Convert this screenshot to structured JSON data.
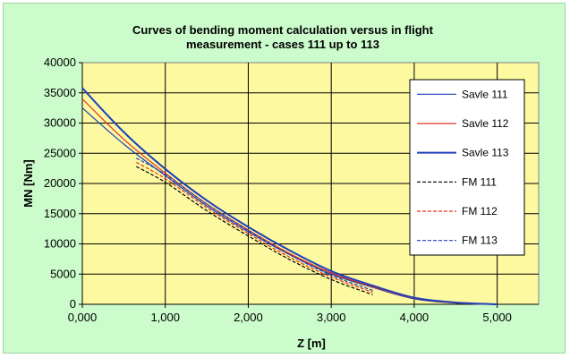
{
  "chart_data": {
    "type": "line",
    "title_lines": [
      "Curves of bending moment calculation versus in flight",
      "measurement - cases 111 up to 113"
    ],
    "xlabel": "Z [m]",
    "ylabel": "MN [Nm]",
    "xlim": [
      0,
      5.5
    ],
    "ylim": [
      0,
      40000
    ],
    "x_ticks": [
      {
        "value": 0,
        "label": "0,000"
      },
      {
        "value": 1,
        "label": "1,000"
      },
      {
        "value": 2,
        "label": "2,000"
      },
      {
        "value": 3,
        "label": "3,000"
      },
      {
        "value": 4,
        "label": "4,000"
      },
      {
        "value": 5,
        "label": "5,000"
      }
    ],
    "y_ticks": [
      {
        "value": 0,
        "label": "0"
      },
      {
        "value": 5000,
        "label": "5000"
      },
      {
        "value": 10000,
        "label": "10000"
      },
      {
        "value": 15000,
        "label": "15000"
      },
      {
        "value": 20000,
        "label": "20000"
      },
      {
        "value": 25000,
        "label": "25000"
      },
      {
        "value": 30000,
        "label": "30000"
      },
      {
        "value": 35000,
        "label": "35000"
      },
      {
        "value": 40000,
        "label": "40000"
      }
    ],
    "grid": true,
    "legend_position": "right",
    "plot_background": "#fcf9a0",
    "series": [
      {
        "name": "Savle 111",
        "color": "#1f3fb8",
        "dash": "solid",
        "width": 1.2,
        "x": [
          0,
          0.5,
          1.0,
          1.5,
          2.0,
          2.5,
          3.0,
          3.5,
          4.0,
          4.5,
          5.0
        ],
        "y": [
          32500,
          26500,
          21300,
          16300,
          12000,
          8200,
          5000,
          2800,
          900,
          200,
          0
        ]
      },
      {
        "name": "Savle 112",
        "color": "#e33020",
        "dash": "solid",
        "width": 1.2,
        "x": [
          0,
          0.5,
          1.0,
          1.5,
          2.0,
          2.5,
          3.0,
          3.5,
          4.0,
          4.5,
          5.0
        ],
        "y": [
          34000,
          27300,
          21700,
          16600,
          12300,
          8400,
          5200,
          2900,
          1000,
          200,
          0
        ]
      },
      {
        "name": "Savle 113",
        "color": "#1f3fb8",
        "dash": "solid",
        "width": 2.0,
        "x": [
          0,
          0.5,
          1.0,
          1.5,
          2.0,
          2.5,
          3.0,
          3.5,
          4.0,
          4.5,
          5.0
        ],
        "y": [
          35800,
          28500,
          22400,
          17200,
          12800,
          8900,
          5500,
          3100,
          1100,
          300,
          0
        ]
      },
      {
        "name": "FM 111",
        "color": "#000000",
        "dash": "dashed",
        "width": 1.2,
        "x": [
          0.65,
          1.0,
          1.5,
          2.0,
          2.5,
          3.0,
          3.5
        ],
        "y": [
          22800,
          20200,
          15500,
          11300,
          7400,
          4100,
          1600
        ]
      },
      {
        "name": "FM 112",
        "color": "#e33020",
        "dash": "dashed",
        "width": 1.2,
        "x": [
          0.65,
          1.0,
          1.5,
          2.0,
          2.5,
          3.0,
          3.5
        ],
        "y": [
          23500,
          20800,
          16000,
          11700,
          7800,
          4500,
          2000
        ]
      },
      {
        "name": "FM 113",
        "color": "#1f3fb8",
        "dash": "dashed",
        "width": 1.2,
        "x": [
          0.65,
          1.0,
          1.5,
          2.0,
          2.5,
          3.0,
          3.5
        ],
        "y": [
          24200,
          21500,
          16600,
          12200,
          8200,
          4800,
          2300
        ]
      }
    ]
  }
}
